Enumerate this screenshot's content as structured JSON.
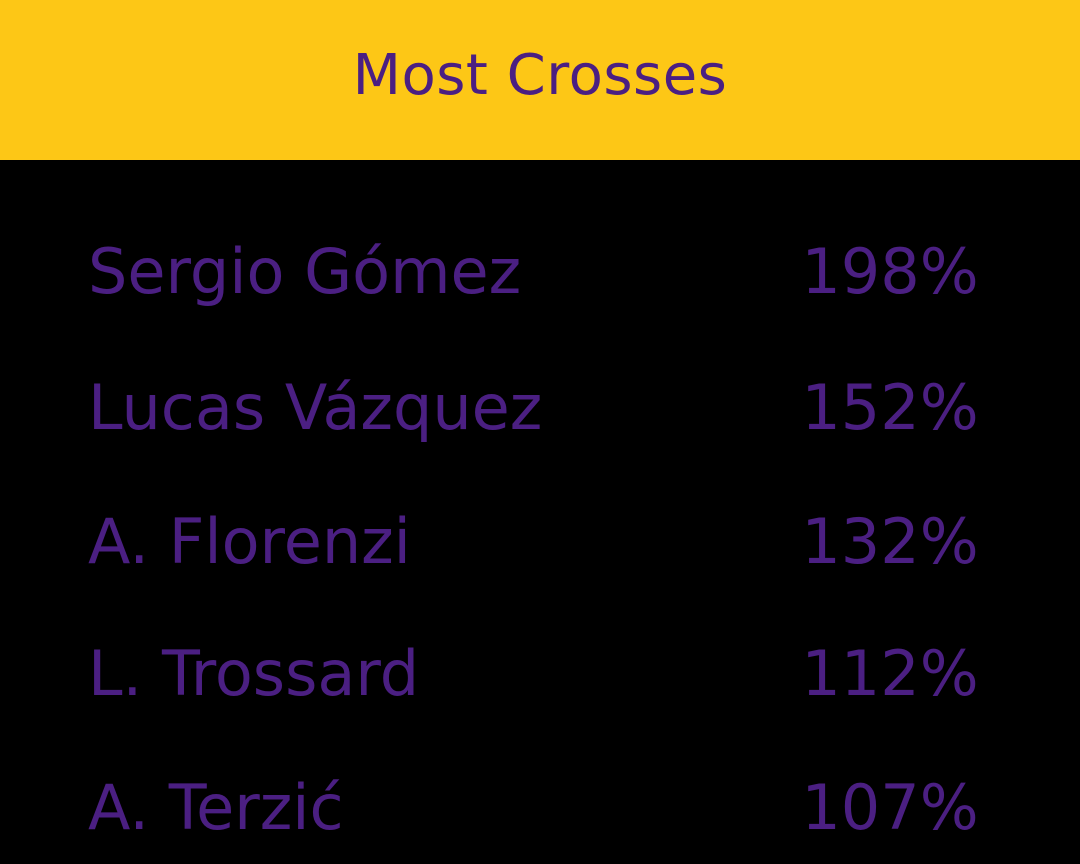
{
  "header": {
    "title": "Most Crosses"
  },
  "colors": {
    "header_background": "#FDC716",
    "page_background": "#000000",
    "text": "#4B1F82"
  },
  "rows": [
    {
      "name": "Sergio Gómez",
      "value": "198%"
    },
    {
      "name": "Lucas Vázquez",
      "value": "152%"
    },
    {
      "name": "A. Florenzi",
      "value": "132%"
    },
    {
      "name": "L. Trossard",
      "value": "112%"
    },
    {
      "name": "A. Terzić",
      "value": "107%"
    }
  ]
}
